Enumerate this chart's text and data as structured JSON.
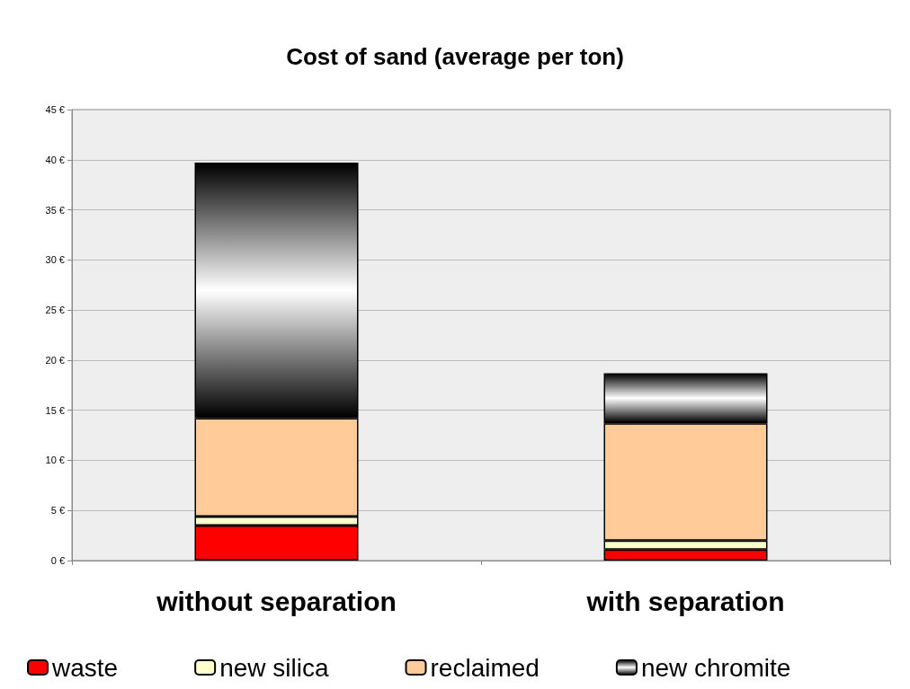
{
  "chart_data": {
    "type": "bar",
    "title": "Cost of sand (average per ton)",
    "categories": [
      "without separation",
      "with separation"
    ],
    "stacked": true,
    "series": [
      {
        "name": "waste",
        "color": "#ff0000",
        "values": [
          3.5,
          1.1
        ]
      },
      {
        "name": "new silica",
        "color": "#ffffcc",
        "values": [
          0.9,
          0.9
        ]
      },
      {
        "name": "reclaimed",
        "color": "#ffcc99",
        "values": [
          9.8,
          11.7
        ]
      },
      {
        "name": "new chromite",
        "color": "#000000",
        "values": [
          25.5,
          5.0
        ]
      }
    ],
    "ylim": [
      0,
      45
    ],
    "yticks": [
      {
        "value": 0,
        "label": "0 €"
      },
      {
        "value": 5,
        "label": "5 €"
      },
      {
        "value": 10,
        "label": "10 €"
      },
      {
        "value": 15,
        "label": "15 €"
      },
      {
        "value": 20,
        "label": "20 €"
      },
      {
        "value": 25,
        "label": "25 €"
      },
      {
        "value": 30,
        "label": "30 €"
      },
      {
        "value": 35,
        "label": "35 €"
      },
      {
        "value": 40,
        "label": "40 €"
      },
      {
        "value": 45,
        "label": "45 €"
      }
    ],
    "grid": "y",
    "legend": "bottom"
  }
}
